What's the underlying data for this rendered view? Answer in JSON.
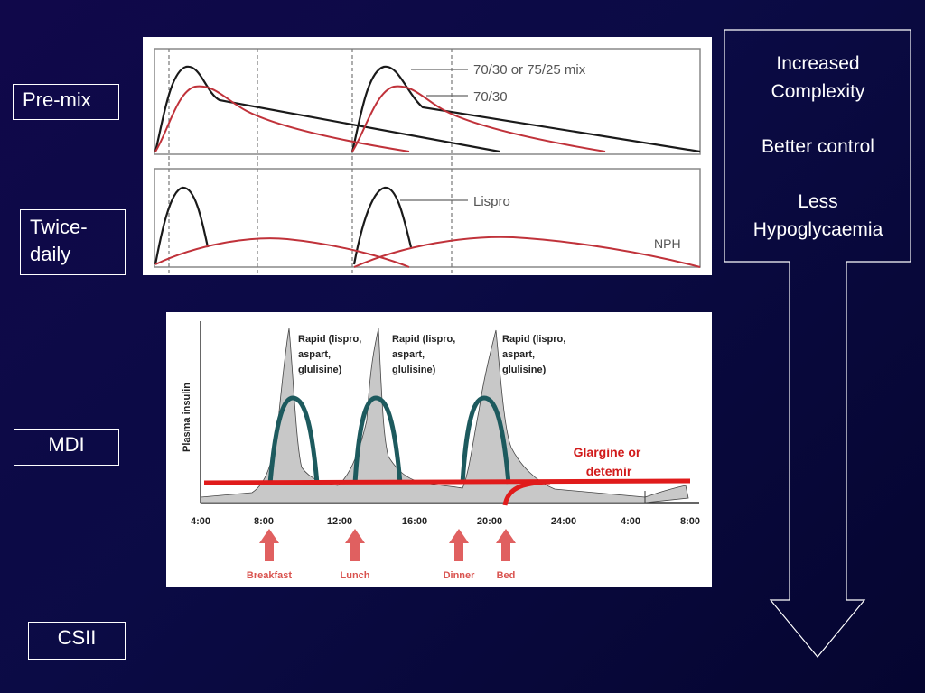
{
  "labels": {
    "premix": "Pre-mix",
    "twice_daily_line1": "Twice-",
    "twice_daily_line2": "daily",
    "mdi": "MDI",
    "csii": "CSII"
  },
  "top_panel": {
    "curve1_label": "70/30 or 75/25 mix",
    "curve2_label": "70/30",
    "curve3_label": "Lispro",
    "curve4_label": "NPH"
  },
  "mdi_panel": {
    "y_label": "Plasma insulin",
    "rapid_label_line1": "Rapid (lispro,",
    "rapid_label_line2": "aspart,",
    "rapid_label_line3": "glulisine)",
    "basal_label_line1": "Glargine or",
    "basal_label_line2": "detemir",
    "x_ticks": [
      "4:00",
      "8:00",
      "12:00",
      "16:00",
      "20:00",
      "24:00",
      "4:00",
      "8:00"
    ],
    "events": [
      "Breakfast",
      "Lunch",
      "Dinner",
      "Bed"
    ]
  },
  "arrow_text": {
    "line1": "Increased\nComplexity",
    "line2": "Better control",
    "line3": "Less\nHypoglycaemia"
  },
  "colors": {
    "background": "#0b0b45",
    "mix_curve": "#1a1a1a",
    "premix_red": "#c0323a",
    "rapid_teal": "#1d5a5e",
    "basal_red": "#e01b1b",
    "event_arrow": "#e06060"
  }
}
